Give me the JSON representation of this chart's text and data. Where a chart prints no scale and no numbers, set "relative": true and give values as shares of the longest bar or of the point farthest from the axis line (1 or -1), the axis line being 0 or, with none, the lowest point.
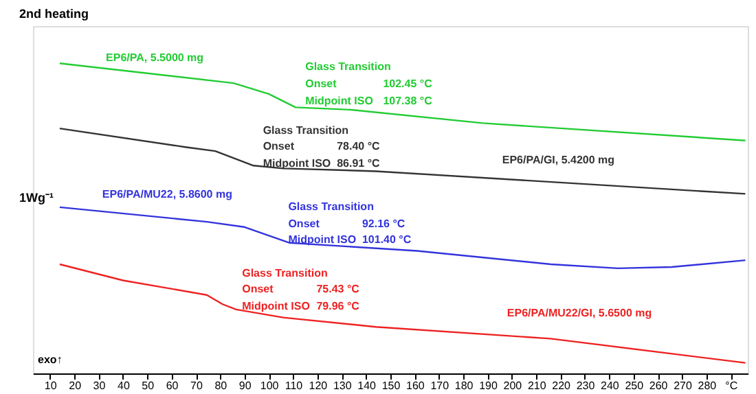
{
  "chart_data": {
    "type": "line",
    "title": "2nd heating",
    "ylabel": "1Wg⁻¹",
    "relative": true,
    "xlim": [
      3,
      297
    ],
    "xticks": [
      10,
      20,
      30,
      40,
      50,
      60,
      70,
      80,
      90,
      100,
      110,
      120,
      130,
      140,
      150,
      160,
      170,
      180,
      190,
      200,
      210,
      220,
      230,
      240,
      250,
      260,
      270,
      280,
      {
        "value": 290,
        "label": "°C"
      }
    ],
    "grid": false,
    "legend": false,
    "line_style": "solid",
    "marker": "none",
    "series": [
      {
        "name": "EP6/PA, 5.5000 mg",
        "color": "#22cc33",
        "x": [
          14,
          85.5,
          100,
          111,
          134,
          188,
          296
        ],
        "values": [
          1.0,
          0.936,
          0.901,
          0.858,
          0.85,
          0.807,
          0.751
        ]
      },
      {
        "name": "EP6/PA/GI, 5.4200 mg",
        "color": "#333333",
        "x": [
          14,
          65.6,
          78,
          93.7,
          106,
          144,
          296
        ],
        "values": [
          0.79,
          0.73,
          0.717,
          0.67,
          0.661,
          0.652,
          0.579
        ]
      },
      {
        "name": "EP6/PA/MU22, 5.8600 mg",
        "color": "#3333dd",
        "x": [
          14,
          74.5,
          90,
          108.6,
          161,
          216,
          243.6,
          265.7,
          296
        ],
        "values": [
          0.536,
          0.489,
          0.472,
          0.421,
          0.395,
          0.352,
          0.339,
          0.343,
          0.365
        ]
      },
      {
        "name": "EP6/PA/MU22/GI, 5.6500 mg",
        "color": "#ee2222",
        "x": [
          14,
          40,
          74.5,
          81,
          86.6,
          106,
          144,
          216,
          296
        ],
        "values": [
          0.352,
          0.3,
          0.253,
          0.223,
          0.206,
          0.18,
          0.15,
          0.112,
          0.034
        ]
      }
    ],
    "annotations": [
      "Glass Transition",
      "Onset",
      "102.45 °C",
      "Midpoint ISO",
      "107.38 °C",
      "Glass Transition",
      "Onset",
      "78.40 °C",
      "Midpoint ISO",
      "86.91 °C",
      "Glass Transition",
      "Onset",
      "92.16 °C",
      "Midpoint ISO",
      "101.40 °C",
      "Glass Transition",
      "Onset",
      "75.43 °C",
      "Midpoint ISO",
      "79.96 °C",
      "exo↑"
    ]
  }
}
